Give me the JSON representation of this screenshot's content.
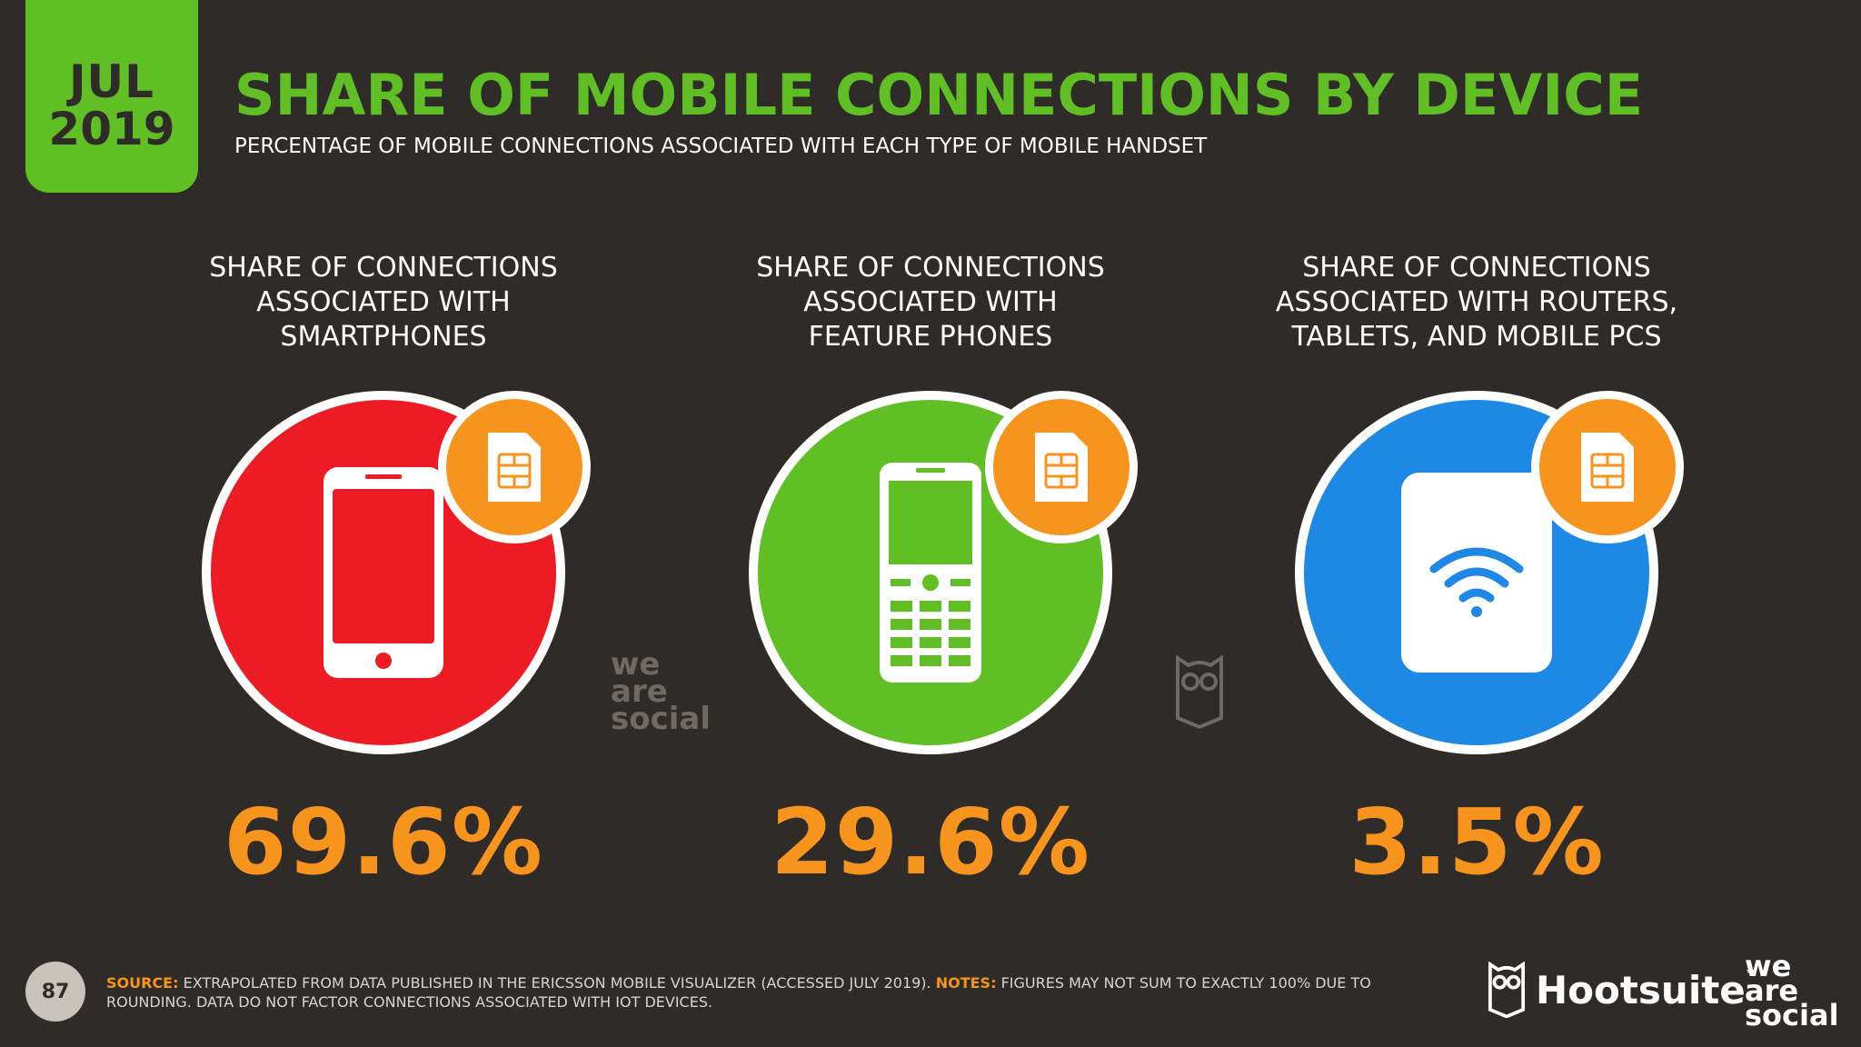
{
  "date": {
    "month": "JUL",
    "year": "2019"
  },
  "title": "SHARE OF MOBILE CONNECTIONS BY DEVICE",
  "subtitle": "PERCENTAGE OF MOBILE CONNECTIONS ASSOCIATED WITH EACH TYPE OF MOBILE HANDSET",
  "colors": {
    "accent_green": "#5fbf24",
    "accent_orange": "#f7941d",
    "background": "#2f2b28"
  },
  "stats": [
    {
      "label": "SHARE OF CONNECTIONS\nASSOCIATED WITH\nSMARTPHONES",
      "value": "69.6%",
      "color": "#ed1c24",
      "icon": "smartphone-icon"
    },
    {
      "label": "SHARE OF CONNECTIONS\nASSOCIATED WITH\nFEATURE PHONES",
      "value": "29.6%",
      "color": "#5fbf24",
      "icon": "feature-phone-icon"
    },
    {
      "label": "SHARE OF CONNECTIONS\nASSOCIATED WITH ROUTERS,\nTABLETS, AND MOBILE PCS",
      "value": "3.5%",
      "color": "#1e88e5",
      "icon": "router-icon"
    }
  ],
  "watermark": {
    "line1": "we",
    "line2": "are",
    "line3": "social"
  },
  "footer": {
    "page_number": "87",
    "source_label": "SOURCE:",
    "source_text": " EXTRAPOLATED FROM DATA PUBLISHED IN THE ERICSSON MOBILE VISUALIZER (ACCESSED JULY 2019). ",
    "notes_label": "NOTES:",
    "notes_text": " FIGURES MAY NOT SUM TO EXACTLY 100% DUE TO ROUNDING. DATA DO NOT FACTOR CONNECTIONS ASSOCIATED WITH IOT DEVICES."
  },
  "brands": {
    "hootsuite": "Hootsuite",
    "tm": "™",
    "was_line1": "we",
    "was_line2": "are",
    "was_line3": "social"
  }
}
